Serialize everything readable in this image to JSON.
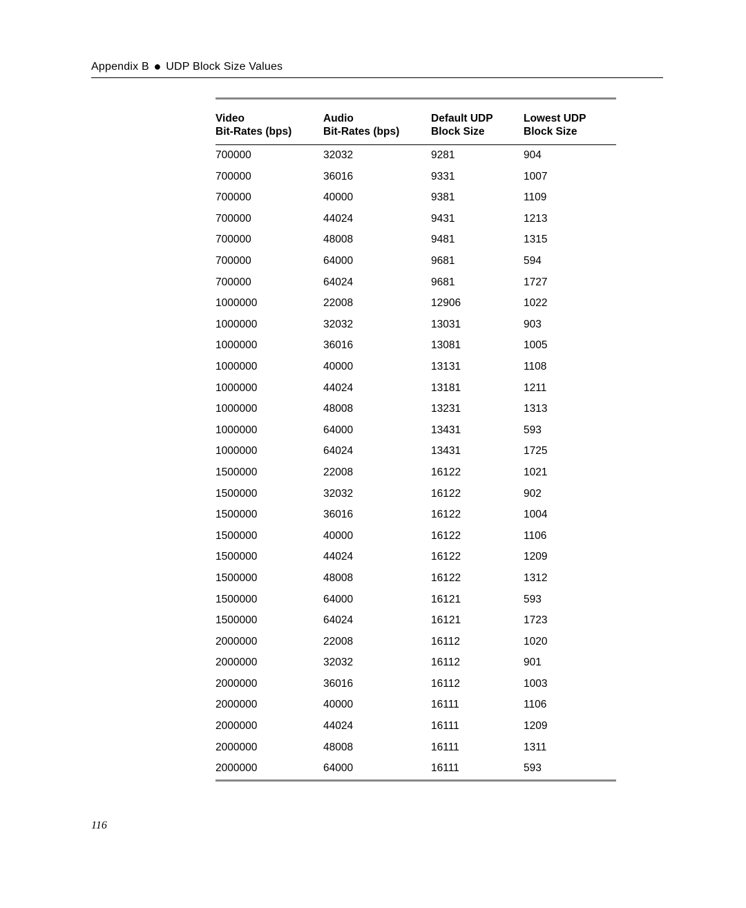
{
  "header": {
    "prefix": "Appendix B",
    "bullet": "●",
    "suffix": "UDP Block Size Values"
  },
  "table": {
    "columns": [
      {
        "line1": "Video",
        "line2": "Bit-Rates (bps)"
      },
      {
        "line1": "Audio",
        "line2": "Bit-Rates (bps)"
      },
      {
        "line1": "Default UDP",
        "line2": "Block Size"
      },
      {
        "line1": "Lowest UDP",
        "line2": "Block Size"
      }
    ],
    "rows": [
      [
        "700000",
        "32032",
        "9281",
        "904"
      ],
      [
        "700000",
        "36016",
        "9331",
        "1007"
      ],
      [
        "700000",
        "40000",
        "9381",
        "1109"
      ],
      [
        "700000",
        "44024",
        "9431",
        "1213"
      ],
      [
        "700000",
        "48008",
        "9481",
        "1315"
      ],
      [
        "700000",
        "64000",
        "9681",
        "594"
      ],
      [
        "700000",
        "64024",
        "9681",
        "1727"
      ],
      [
        "1000000",
        "22008",
        "12906",
        "1022"
      ],
      [
        "1000000",
        "32032",
        "13031",
        "903"
      ],
      [
        "1000000",
        "36016",
        "13081",
        "1005"
      ],
      [
        "1000000",
        "40000",
        "13131",
        "1108"
      ],
      [
        "1000000",
        "44024",
        "13181",
        "1211"
      ],
      [
        "1000000",
        "48008",
        "13231",
        "1313"
      ],
      [
        "1000000",
        "64000",
        "13431",
        "593"
      ],
      [
        "1000000",
        "64024",
        "13431",
        "1725"
      ],
      [
        "1500000",
        "22008",
        "16122",
        "1021"
      ],
      [
        "1500000",
        "32032",
        "16122",
        "902"
      ],
      [
        "1500000",
        "36016",
        "16122",
        "1004"
      ],
      [
        "1500000",
        "40000",
        "16122",
        "1106"
      ],
      [
        "1500000",
        "44024",
        "16122",
        "1209"
      ],
      [
        "1500000",
        "48008",
        "16122",
        "1312"
      ],
      [
        "1500000",
        "64000",
        "16121",
        "593"
      ],
      [
        "1500000",
        "64024",
        "16121",
        "1723"
      ],
      [
        "2000000",
        "22008",
        "16112",
        "1020"
      ],
      [
        "2000000",
        "32032",
        "16112",
        "901"
      ],
      [
        "2000000",
        "36016",
        "16112",
        "1003"
      ],
      [
        "2000000",
        "40000",
        "16111",
        "1106"
      ],
      [
        "2000000",
        "44024",
        "16111",
        "1209"
      ],
      [
        "2000000",
        "48008",
        "16111",
        "1311"
      ],
      [
        "2000000",
        "64000",
        "16111",
        "593"
      ]
    ]
  },
  "page_number": "116",
  "style": {
    "background_color": "#ffffff",
    "text_color": "#000000",
    "border_color_thick": "#888888",
    "border_color_thin": "#000000",
    "header_fontsize": 16,
    "table_fontsize": 15.5,
    "font_family": "Arial, Helvetica, sans-serif",
    "pagenum_font_family": "Times New Roman, serif"
  }
}
